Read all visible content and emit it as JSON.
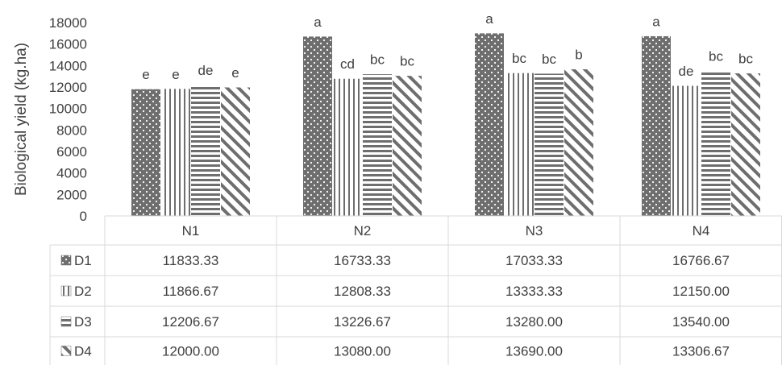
{
  "chart_data": {
    "type": "bar",
    "ylabel": "Biological yield (kg.ha)",
    "ylim": [
      0,
      18000
    ],
    "yticks": [
      0,
      2000,
      4000,
      6000,
      8000,
      10000,
      12000,
      14000,
      16000,
      18000
    ],
    "grid": false,
    "legend": "data-table",
    "categories": [
      "N1",
      "N2",
      "N3",
      "N4"
    ],
    "series": [
      {
        "name": "D1",
        "pattern": "dots",
        "values": [
          11833.33,
          16733.33,
          17033.33,
          16766.67
        ],
        "value_labels": [
          "11833.33",
          "16733.33",
          "17033.33",
          "16766.67"
        ],
        "letters": [
          "e",
          "a",
          "a",
          "a"
        ]
      },
      {
        "name": "D2",
        "pattern": "vertical-lines",
        "values": [
          11866.67,
          12808.33,
          13333.33,
          12150.0
        ],
        "value_labels": [
          "11866.67",
          "12808.33",
          "13333.33",
          "12150.00"
        ],
        "letters": [
          "e",
          "cd",
          "bc",
          "de"
        ]
      },
      {
        "name": "D3",
        "pattern": "horizontal-lines",
        "values": [
          12206.67,
          13226.67,
          13280.0,
          13540.0
        ],
        "value_labels": [
          "12206.67",
          "13226.67",
          "13280.00",
          "13540.00"
        ],
        "letters": [
          "de",
          "bc",
          "bc",
          "bc"
        ]
      },
      {
        "name": "D4",
        "pattern": "diagonal-lines",
        "values": [
          12000.0,
          13080.0,
          13690.0,
          13306.67
        ],
        "value_labels": [
          "12000.00",
          "13080.00",
          "13690.00",
          "13306.67"
        ],
        "letters": [
          "e",
          "bc",
          "b",
          "bc"
        ]
      }
    ],
    "colors": {
      "bar": "#6e6e6e",
      "text": "#404040",
      "grid": "#d9d9d9"
    }
  }
}
